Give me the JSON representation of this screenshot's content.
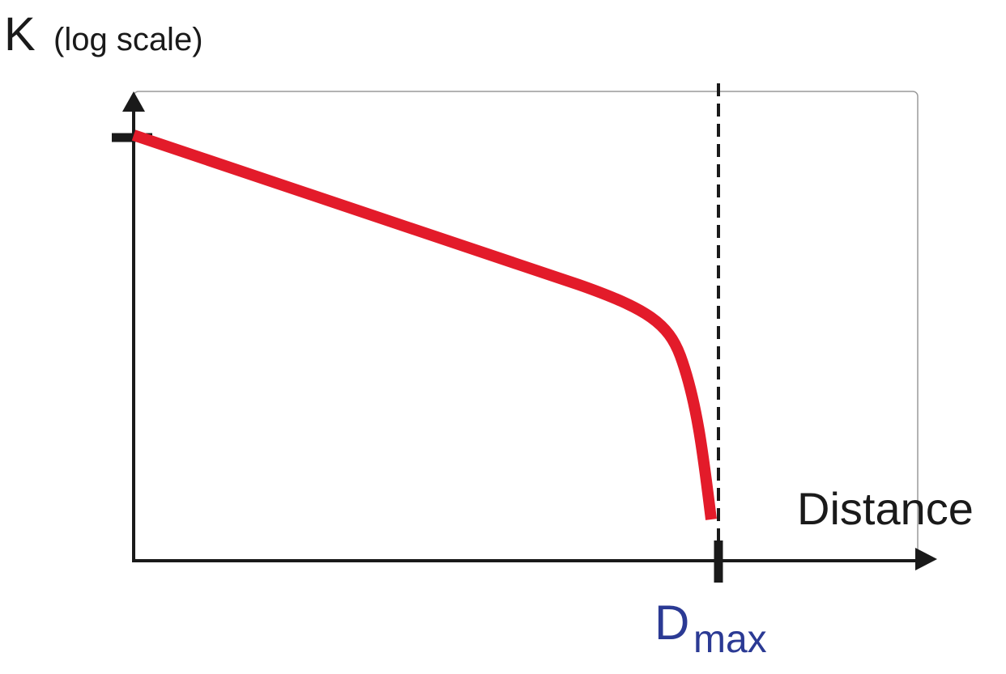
{
  "axis_labels": {
    "y": {
      "symbol": "K",
      "note": "(log scale)"
    },
    "x": "Distance"
  },
  "marker": {
    "symbol": "D",
    "subscript": "max"
  }
}
